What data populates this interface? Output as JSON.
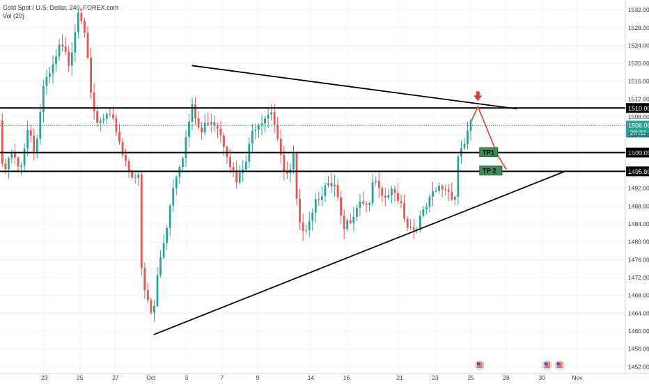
{
  "header": {
    "title": "Gold Spot / U.S. Dollar, 240, FOREX.com",
    "indicator": "Vol (20)"
  },
  "chart_data": {
    "type": "candlestick",
    "ylim": [
      1450.5,
      1534.2
    ],
    "x_range": [
      -2.5,
      32.7
    ],
    "y_ticks": [
      1452,
      1456,
      1460,
      1464,
      1468,
      1472,
      1476,
      1480,
      1484,
      1488,
      1492,
      1496,
      1500,
      1504,
      1508,
      1512,
      1516,
      1520,
      1524,
      1528,
      1532
    ],
    "x_ticks": [
      {
        "label": "23",
        "x": 0
      },
      {
        "label": "25",
        "x": 2
      },
      {
        "label": "27",
        "x": 4
      },
      {
        "label": "Oct",
        "x": 6
      },
      {
        "label": "3",
        "x": 8
      },
      {
        "label": "7",
        "x": 10
      },
      {
        "label": "9",
        "x": 12
      },
      {
        "label": "14",
        "x": 15
      },
      {
        "label": "16",
        "x": 17
      },
      {
        "label": "21",
        "x": 20
      },
      {
        "label": "23",
        "x": 22
      },
      {
        "label": "25",
        "x": 24
      },
      {
        "label": "28",
        "x": 26
      },
      {
        "label": "30",
        "x": 28
      },
      {
        "label": "Nov",
        "x": 30
      }
    ],
    "candle_count": 150,
    "candle_x_start": -2.55,
    "candle_x_end": 24.0,
    "path_points": [
      [
        -2.55,
        1506
      ],
      [
        -2.3,
        1494
      ],
      [
        -1.9,
        1500
      ],
      [
        -1.4,
        1496
      ],
      [
        -0.9,
        1506
      ],
      [
        -0.5,
        1500
      ],
      [
        -0.1,
        1514
      ],
      [
        0.4,
        1518
      ],
      [
        0.9,
        1524
      ],
      [
        1.4,
        1520
      ],
      [
        1.9,
        1532
      ],
      [
        2.2,
        1530
      ],
      [
        2.5,
        1520
      ],
      [
        2.65,
        1510
      ],
      [
        3.0,
        1506
      ],
      [
        3.5,
        1508
      ],
      [
        4.0,
        1506
      ],
      [
        4.4,
        1500
      ],
      [
        4.8,
        1496
      ],
      [
        5.3,
        1494
      ],
      [
        5.5,
        1470
      ],
      [
        5.9,
        1466
      ],
      [
        6.1,
        1462
      ],
      [
        6.4,
        1474
      ],
      [
        6.9,
        1484
      ],
      [
        7.3,
        1494
      ],
      [
        7.8,
        1500
      ],
      [
        8.3,
        1510
      ],
      [
        8.8,
        1504
      ],
      [
        9.3,
        1508
      ],
      [
        9.8,
        1506
      ],
      [
        10.3,
        1500
      ],
      [
        10.8,
        1493
      ],
      [
        11.3,
        1497
      ],
      [
        11.8,
        1506
      ],
      [
        12.3,
        1508
      ],
      [
        12.8,
        1510
      ],
      [
        13.1,
        1504
      ],
      [
        13.4,
        1496
      ],
      [
        13.8,
        1494
      ],
      [
        14.0,
        1500
      ],
      [
        14.3,
        1483
      ],
      [
        14.8,
        1484
      ],
      [
        15.3,
        1490
      ],
      [
        15.8,
        1492
      ],
      [
        16.4,
        1492
      ],
      [
        16.8,
        1482
      ],
      [
        17.3,
        1486
      ],
      [
        17.8,
        1490
      ],
      [
        18.2,
        1488
      ],
      [
        18.6,
        1494
      ],
      [
        19.0,
        1489
      ],
      [
        19.5,
        1491
      ],
      [
        20.0,
        1490
      ],
      [
        20.4,
        1484
      ],
      [
        20.8,
        1483
      ],
      [
        21.3,
        1486
      ],
      [
        21.8,
        1490
      ],
      [
        22.2,
        1492
      ],
      [
        22.6,
        1492
      ],
      [
        23.1,
        1490
      ],
      [
        23.3,
        1500
      ],
      [
        23.6,
        1502
      ],
      [
        24.0,
        1506.06
      ]
    ],
    "horizontal_levels": [
      {
        "price": 1510.0,
        "label": "1510.00"
      },
      {
        "price": 1500.0,
        "label": "1500.00"
      },
      {
        "price": 1495.8,
        "label": "1495.80"
      }
    ],
    "current_price": {
      "value": 1506.06,
      "label": "1506.06",
      "countdown": "23:22"
    },
    "trendlines": [
      {
        "name": "upper-trendline",
        "from": [
          8.3,
          1519.5
        ],
        "to": [
          26.6,
          1509.8
        ]
      },
      {
        "name": "lower-trendline",
        "from": [
          6.15,
          1459.2
        ],
        "to": [
          29.3,
          1495.8
        ]
      }
    ],
    "projection": [
      [
        24.05,
        1507.2
      ],
      [
        24.4,
        1510.3
      ],
      [
        25.1,
        1503.5
      ],
      [
        25.5,
        1499.5
      ],
      [
        26.0,
        1496.2
      ]
    ],
    "target_labels": [
      {
        "text": "TP1",
        "x": 24.5,
        "y": 1500
      },
      {
        "text": "TP 2",
        "x": 24.5,
        "y": 1495.9
      }
    ],
    "arrow_marker": {
      "x": 24.4,
      "y": 1512.0
    },
    "event_markers": [
      {
        "x": 24.5
      },
      {
        "x": 28.3
      },
      {
        "x": 29.0
      }
    ]
  },
  "colors": {
    "up": "#26a69a",
    "down": "#ef5350",
    "level_line": "#000000",
    "trendline": "#000000",
    "projection": "#e53935",
    "tp_bg": "#3d8b5a",
    "price_tag_bg": "#26a69a",
    "axis_text": "#333333",
    "gridline": "#f0f3f5"
  }
}
